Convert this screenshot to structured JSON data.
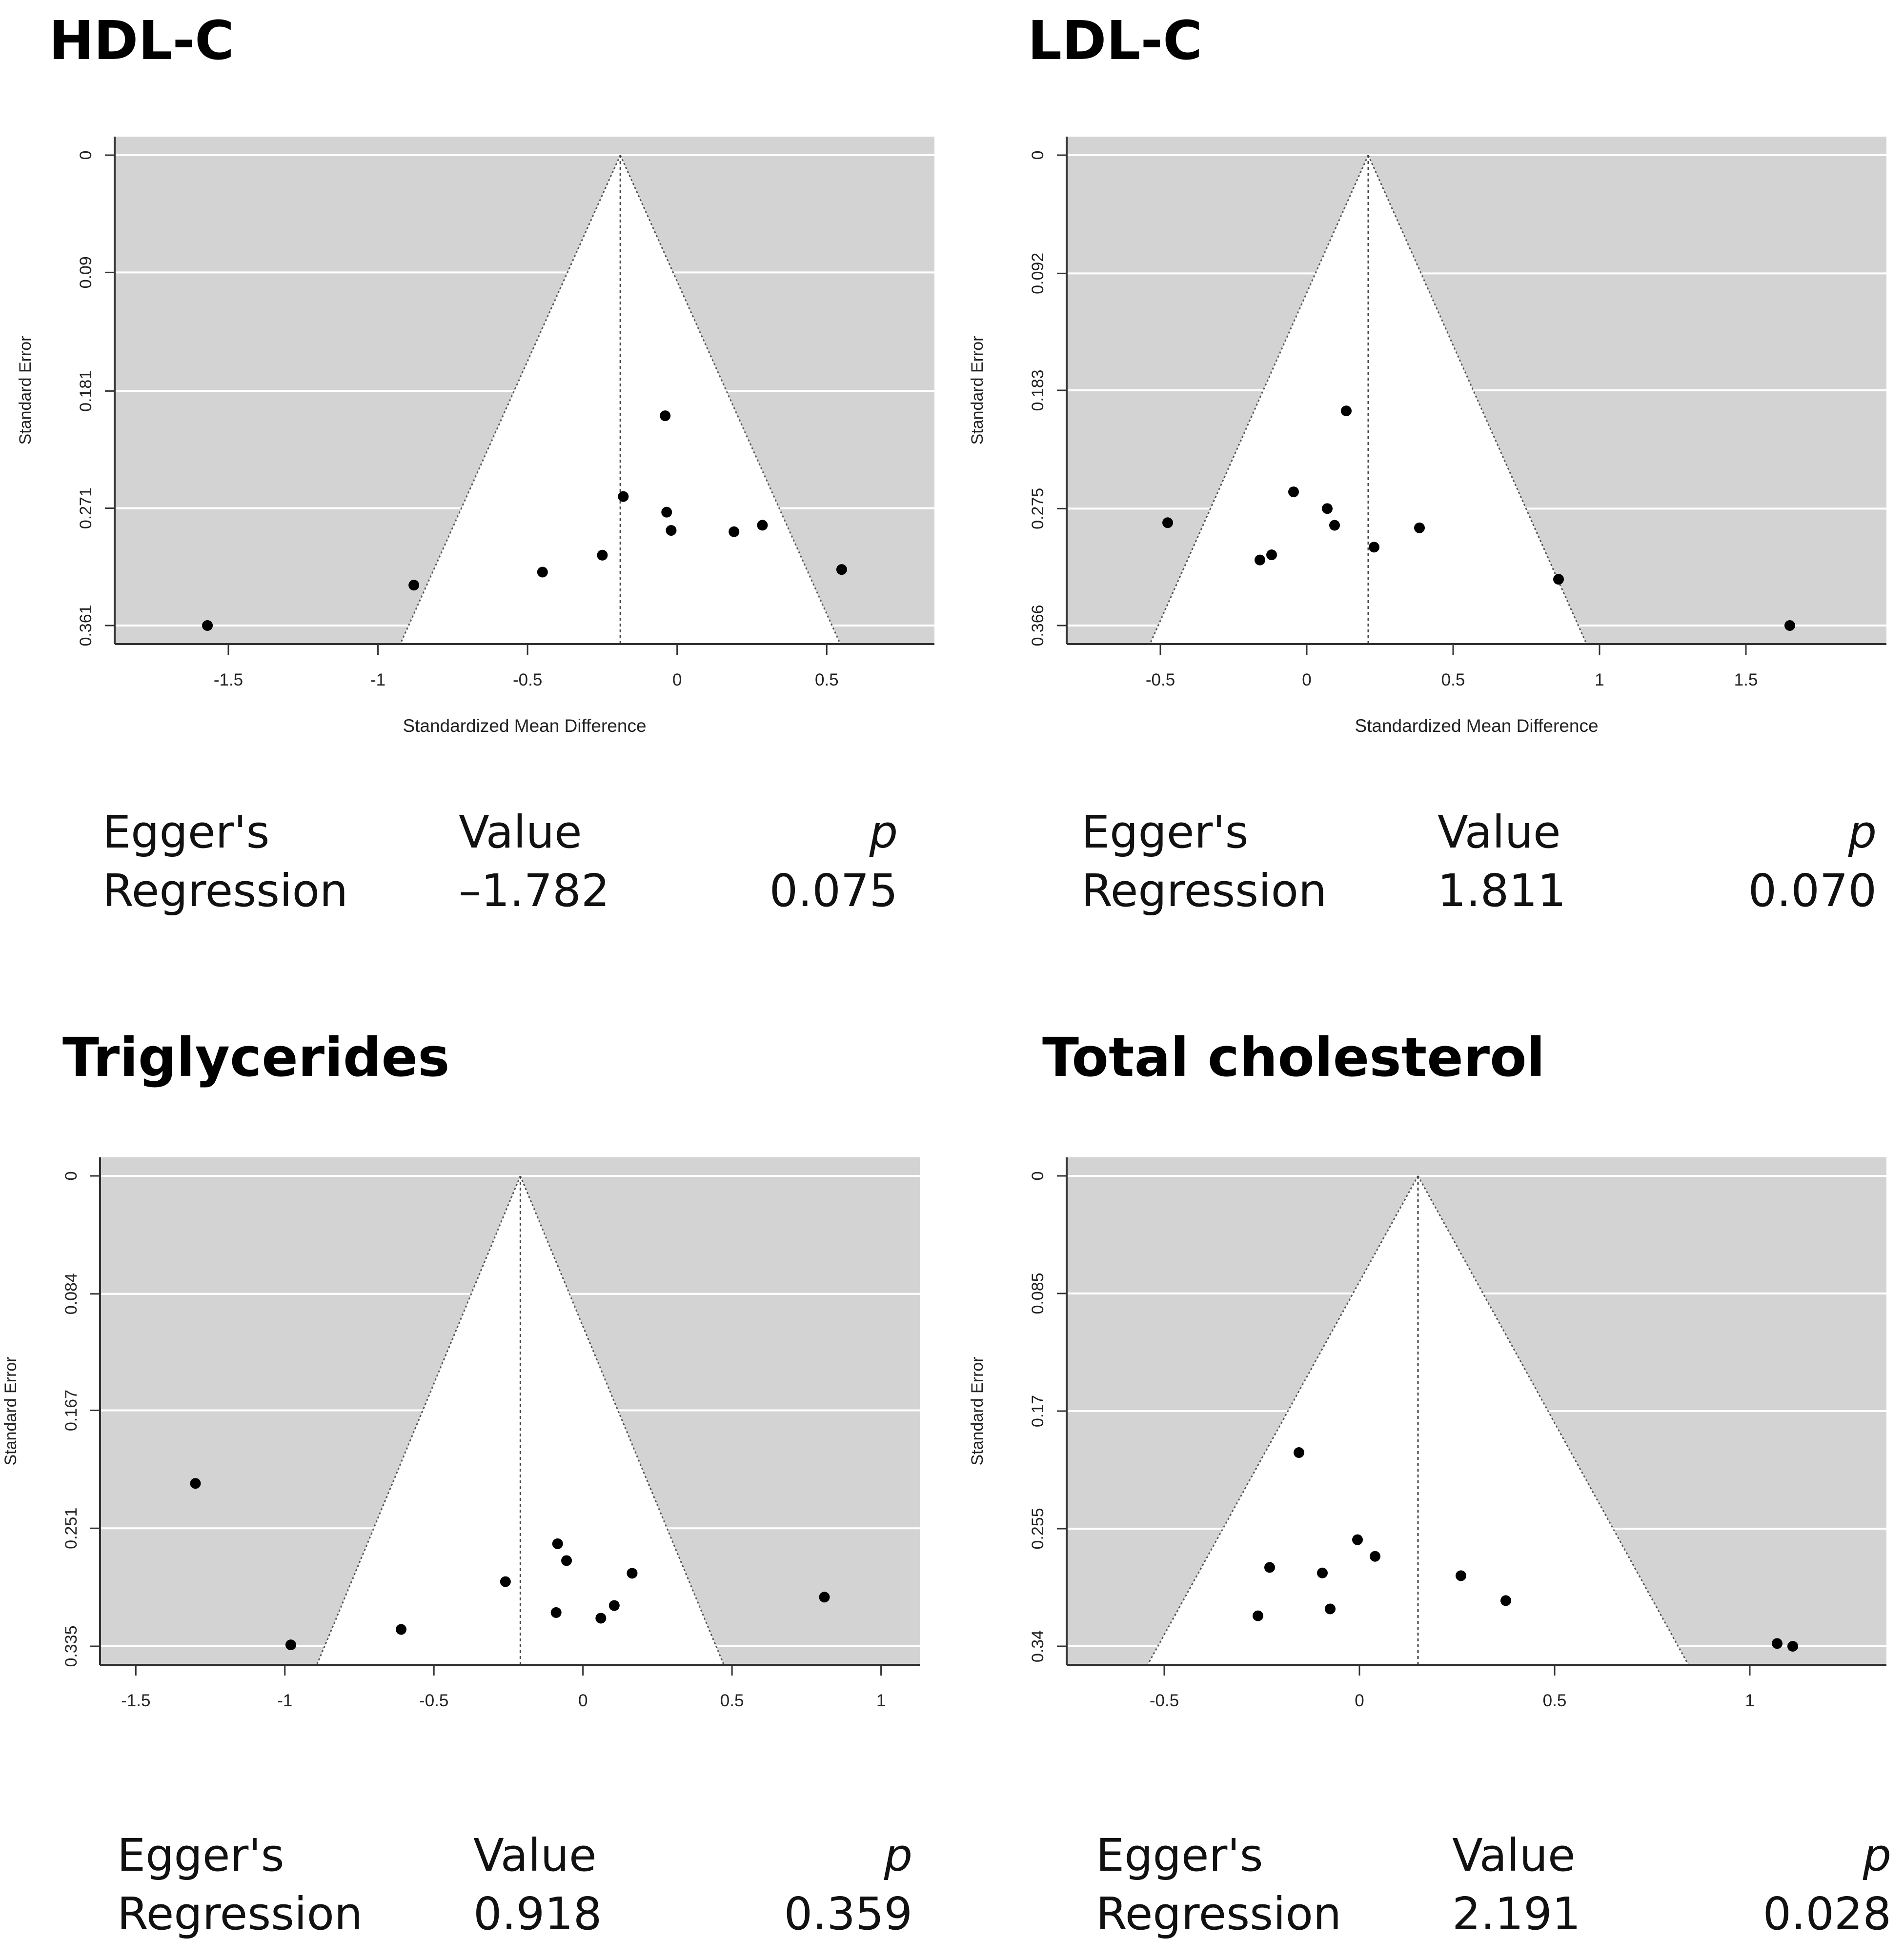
{
  "chart_data": [
    {
      "type": "scatter",
      "subtype": "funnel",
      "title": "HDL-C",
      "xlabel": "Standardized Mean Difference",
      "ylabel": "Standard Error",
      "xlim": [
        -1.88,
        0.86
      ],
      "ylim": [
        0.0,
        0.361
      ],
      "x_ticks": [
        -1.5,
        -1,
        -0.5,
        0,
        0.5
      ],
      "x_tick_labels": [
        "-1.5",
        "-1",
        "-0.5",
        "0",
        "0.5"
      ],
      "y_ticks": [
        0,
        0.09,
        0.181,
        0.271,
        0.361
      ],
      "y_tick_labels": [
        "0",
        "0.09",
        "0.181",
        "0.271",
        "0.361"
      ],
      "center": -0.19,
      "points": [
        {
          "x": -1.57,
          "y": 0.361
        },
        {
          "x": -0.88,
          "y": 0.33
        },
        {
          "x": -0.45,
          "y": 0.32
        },
        {
          "x": -0.25,
          "y": 0.307
        },
        {
          "x": -0.18,
          "y": 0.262
        },
        {
          "x": -0.04,
          "y": 0.2
        },
        {
          "x": -0.035,
          "y": 0.274
        },
        {
          "x": -0.02,
          "y": 0.288
        },
        {
          "x": 0.19,
          "y": 0.289
        },
        {
          "x": 0.285,
          "y": 0.284
        },
        {
          "x": 0.55,
          "y": 0.318
        }
      ],
      "egger": {
        "label_line1": "Egger's",
        "label_line2": "Regression",
        "value_header": "Value",
        "value": "–1.782",
        "p_header": "p",
        "p_value": "0.075"
      }
    },
    {
      "type": "scatter",
      "subtype": "funnel",
      "title": "LDL-C",
      "xlabel": "Standardized Mean Difference",
      "ylabel": "Standard Error",
      "xlim": [
        -0.82,
        1.98
      ],
      "ylim": [
        0.0,
        0.366
      ],
      "x_ticks": [
        -0.5,
        0,
        0.5,
        1,
        1.5
      ],
      "x_tick_labels": [
        "-0.5",
        "0",
        "0.5",
        "1",
        "1.5"
      ],
      "y_ticks": [
        0,
        0.092,
        0.183,
        0.275,
        0.366
      ],
      "y_tick_labels": [
        "0",
        "0.092",
        "0.183",
        "0.275",
        "0.366"
      ],
      "center": 0.21,
      "points": [
        {
          "x": 0.135,
          "y": 0.199
        },
        {
          "x": -0.045,
          "y": 0.262
        },
        {
          "x": 0.07,
          "y": 0.275
        },
        {
          "x": 0.095,
          "y": 0.288
        },
        {
          "x": -0.475,
          "y": 0.286
        },
        {
          "x": 0.385,
          "y": 0.29
        },
        {
          "x": 0.23,
          "y": 0.305
        },
        {
          "x": -0.12,
          "y": 0.311
        },
        {
          "x": -0.16,
          "y": 0.315
        },
        {
          "x": 0.86,
          "y": 0.33
        },
        {
          "x": 1.65,
          "y": 0.366
        }
      ],
      "egger": {
        "label_line1": "Egger's",
        "label_line2": "Regression",
        "value_header": "Value",
        "value": "1.811",
        "p_header": "p",
        "p_value": "0.070"
      }
    },
    {
      "type": "scatter",
      "subtype": "funnel",
      "title": "Triglycerides",
      "xlabel": "Standardized Mean Difference",
      "ylabel": "Standard Error",
      "xlim": [
        -1.62,
        1.13
      ],
      "ylim": [
        0.0,
        0.335
      ],
      "x_ticks": [
        -1.5,
        -1,
        -0.5,
        0,
        0.5,
        1
      ],
      "x_tick_labels": [
        "-1.5",
        "-1",
        "-0.5",
        "0",
        "0.5",
        "1"
      ],
      "y_ticks": [
        0,
        0.084,
        0.167,
        0.251,
        0.335
      ],
      "y_tick_labels": [
        "0",
        "0.084",
        "0.167",
        "0.251",
        "0.335"
      ],
      "center": -0.21,
      "points": [
        {
          "x": -1.3,
          "y": 0.219
        },
        {
          "x": -0.98,
          "y": 0.334
        },
        {
          "x": -0.61,
          "y": 0.323
        },
        {
          "x": -0.26,
          "y": 0.289
        },
        {
          "x": -0.085,
          "y": 0.262
        },
        {
          "x": -0.055,
          "y": 0.274
        },
        {
          "x": -0.09,
          "y": 0.311
        },
        {
          "x": 0.06,
          "y": 0.315
        },
        {
          "x": 0.105,
          "y": 0.306
        },
        {
          "x": 0.165,
          "y": 0.283
        },
        {
          "x": 0.81,
          "y": 0.3
        }
      ],
      "egger": {
        "label_line1": "Egger's",
        "label_line2": "Regression",
        "value_header": "Value",
        "value": "0.918",
        "p_header": "p",
        "p_value": "0.359"
      }
    },
    {
      "type": "scatter",
      "subtype": "funnel",
      "title": "Total cholesterol",
      "xlabel": "Standardized Mean Difference",
      "ylabel": "Standard Error",
      "xlim": [
        -0.75,
        1.35
      ],
      "ylim": [
        0.0,
        0.34
      ],
      "x_ticks": [
        -0.5,
        0,
        0.5,
        1
      ],
      "x_tick_labels": [
        "-0.5",
        "0",
        "0.5",
        "1"
      ],
      "y_ticks": [
        0,
        0.085,
        0.17,
        0.255,
        0.34
      ],
      "y_tick_labels": [
        "0",
        "0.085",
        "0.17",
        "0.255",
        "0.34"
      ],
      "center": 0.15,
      "points": [
        {
          "x": -0.155,
          "y": 0.2
        },
        {
          "x": -0.005,
          "y": 0.263
        },
        {
          "x": 0.04,
          "y": 0.275
        },
        {
          "x": -0.23,
          "y": 0.283
        },
        {
          "x": -0.095,
          "y": 0.287
        },
        {
          "x": 0.26,
          "y": 0.289
        },
        {
          "x": 0.375,
          "y": 0.307
        },
        {
          "x": -0.075,
          "y": 0.313
        },
        {
          "x": -0.26,
          "y": 0.318
        },
        {
          "x": 1.07,
          "y": 0.338
        },
        {
          "x": 1.11,
          "y": 0.34
        }
      ],
      "egger": {
        "label_line1": "Egger's",
        "label_line2": "Regression",
        "value_header": "Value",
        "value": "2.191",
        "p_header": "p",
        "p_value": "0.028"
      }
    }
  ]
}
